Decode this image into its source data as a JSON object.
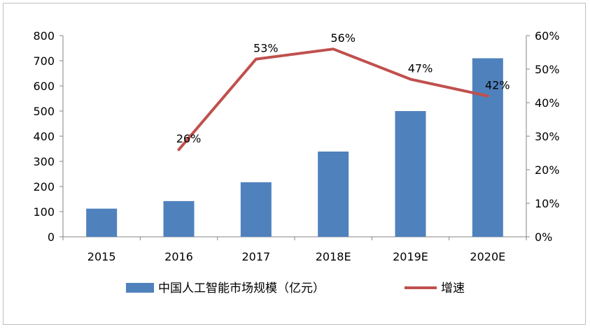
{
  "chart_data": {
    "type": "bar+line",
    "categories": [
      "2015",
      "2016",
      "2017",
      "2018E",
      "2019E",
      "2020E"
    ],
    "series": [
      {
        "name": "中国人工智能市场规模（亿元）",
        "type": "bar",
        "axis": "left",
        "color": "#4f81bd",
        "values": [
          112,
          142,
          217,
          339,
          500,
          710
        ]
      },
      {
        "name": "增速",
        "type": "line",
        "axis": "right",
        "color": "#c0504d",
        "values": [
          null,
          26,
          53,
          56,
          47,
          42
        ],
        "labels": [
          "",
          "26%",
          "53%",
          "56%",
          "47%",
          "42%"
        ]
      }
    ],
    "y_left": {
      "min": 0,
      "max": 800,
      "step": 100,
      "ticks": [
        "0",
        "100",
        "200",
        "300",
        "400",
        "500",
        "600",
        "700",
        "800"
      ]
    },
    "y_right": {
      "min": 0,
      "max": 60,
      "step": 10,
      "ticks": [
        "0%",
        "10%",
        "20%",
        "30%",
        "40%",
        "50%",
        "60%"
      ]
    },
    "grid": false,
    "legend_position": "bottom"
  }
}
